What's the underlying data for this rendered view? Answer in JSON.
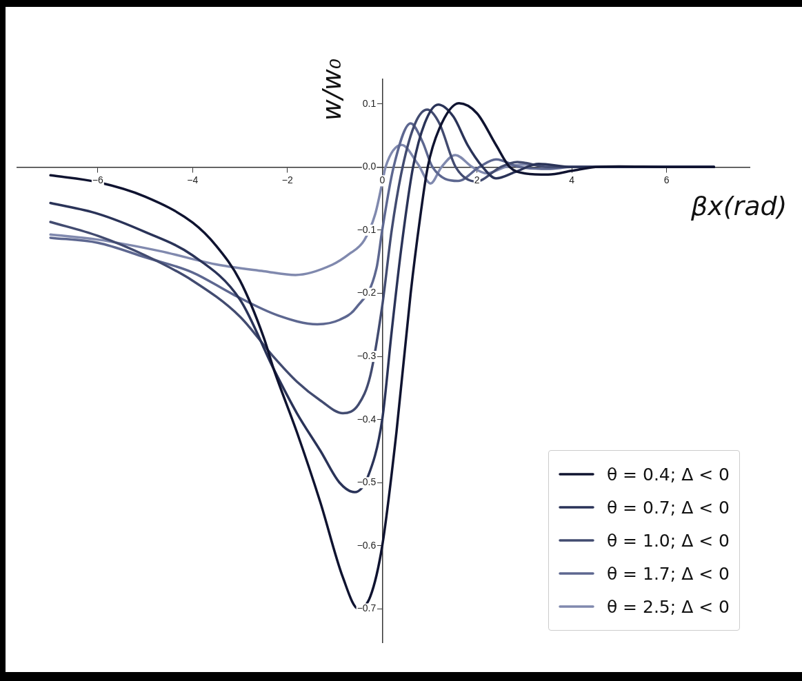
{
  "chart_data": {
    "type": "line",
    "xlabel": "βx(rad)",
    "ylabel": "w/w₀",
    "xlim": [
      -7.7,
      7.75
    ],
    "ylim": [
      -0.753,
      0.139
    ],
    "xticks": [
      {
        "value": -6,
        "label": "−6"
      },
      {
        "value": -4,
        "label": "−4"
      },
      {
        "value": -2,
        "label": "−2"
      },
      0,
      2,
      4,
      6
    ],
    "yticks": [
      0.1,
      {
        "value": 0,
        "label": "0.0"
      },
      {
        "value": -0.1,
        "label": "−0.1"
      },
      {
        "value": -0.2,
        "label": "−0.2"
      },
      {
        "value": -0.3,
        "label": "−0.3"
      },
      {
        "value": -0.4,
        "label": "−0.4"
      },
      {
        "value": -0.5,
        "label": "−0.5"
      },
      {
        "value": -0.6,
        "label": "−0.6"
      },
      {
        "value": -0.7,
        "label": "−0.7"
      }
    ],
    "grid": false,
    "legend": "bottom right",
    "marker": "none",
    "line_style": "solid",
    "series": [
      {
        "name": "θ = 0.4; Δ < 0",
        "color": "#0f1330",
        "x": [
          -7,
          -6,
          -5,
          -4,
          -3.5,
          -3,
          -2.5,
          -2.29,
          -1.8,
          -1.31,
          -0.83,
          -0.5,
          -0.25,
          0,
          0.3,
          0.6,
          0.8,
          0.96,
          1.2,
          1.62,
          2,
          2.4,
          2.69,
          3,
          3.5,
          4,
          4.5,
          5,
          6,
          7
        ],
        "values": [
          -0.013,
          -0.024,
          -0.047,
          -0.088,
          -0.125,
          -0.18,
          -0.27,
          -0.32,
          -0.42,
          -0.53,
          -0.65,
          -0.7,
          -0.68,
          -0.6,
          -0.42,
          -0.2,
          -0.08,
          0,
          0.06,
          0.101,
          0.085,
          0.035,
          0,
          -0.01,
          -0.012,
          -0.006,
          0,
          0.001,
          0,
          0
        ]
      },
      {
        "name": "θ = 0.7; Δ < 0",
        "color": "#2a3358",
        "x": [
          -7,
          -6,
          -5,
          -4,
          -3,
          -2.29,
          -1.8,
          -1.3,
          -0.9,
          -0.58,
          -0.3,
          0,
          0.2,
          0.4,
          0.65,
          0.9,
          1.18,
          1.5,
          1.8,
          2.12,
          2.4,
          2.8,
          3.3,
          4,
          5,
          6,
          7
        ],
        "values": [
          -0.057,
          -0.074,
          -0.103,
          -0.14,
          -0.21,
          -0.32,
          -0.39,
          -0.45,
          -0.5,
          -0.515,
          -0.49,
          -0.4,
          -0.26,
          -0.13,
          0,
          0.07,
          0.099,
          0.08,
          0.035,
          0,
          -0.018,
          -0.008,
          0.005,
          0,
          0,
          0,
          0
        ]
      },
      {
        "name": "θ = 1.0; Δ < 0",
        "color": "#424b70",
        "x": [
          -7,
          -6,
          -5,
          -4,
          -3,
          -2.3,
          -1.8,
          -1.3,
          -0.83,
          -0.5,
          -0.25,
          0,
          0.2,
          0.43,
          0.7,
          0.95,
          1.2,
          1.55,
          1.98,
          2.5,
          2.85,
          3.5,
          4,
          5,
          6,
          7
        ],
        "values": [
          -0.087,
          -0.109,
          -0.14,
          -0.18,
          -0.237,
          -0.3,
          -0.34,
          -0.37,
          -0.39,
          -0.376,
          -0.33,
          -0.22,
          -0.1,
          0,
          0.07,
          0.091,
          0.07,
          0,
          -0.023,
          0,
          0.008,
          0,
          0,
          0,
          0,
          0
        ]
      },
      {
        "name": "θ = 1.7; Δ < 0",
        "color": "#5d6790",
        "x": [
          -7,
          -6,
          -5,
          -4,
          -3.14,
          -2.2,
          -1.37,
          -0.9,
          -0.54,
          -0.12,
          0,
          0.24,
          0.6,
          0.85,
          1.06,
          1.6,
          2.05,
          2.4,
          2.9,
          3.5,
          4,
          5,
          6,
          7
        ],
        "values": [
          -0.112,
          -0.12,
          -0.143,
          -0.167,
          -0.202,
          -0.235,
          -0.249,
          -0.242,
          -0.222,
          -0.16,
          -0.1,
          0,
          0.069,
          0.04,
          0,
          -0.022,
          0,
          0.012,
          0,
          -0.003,
          0,
          0,
          0,
          0
        ]
      },
      {
        "name": "θ = 2.5; Δ < 0",
        "color": "#8089ae",
        "x": [
          -7,
          -6,
          -4.7,
          -3.45,
          -2.5,
          -1.83,
          -1.06,
          -0.7,
          -0.38,
          -0.15,
          0,
          0.07,
          0.41,
          0.75,
          1.02,
          1.25,
          1.54,
          1.9,
          2.2,
          2.6,
          3,
          4,
          5,
          6,
          7
        ],
        "values": [
          -0.107,
          -0.115,
          -0.133,
          -0.155,
          -0.165,
          -0.171,
          -0.155,
          -0.138,
          -0.116,
          -0.075,
          -0.025,
          0,
          0.035,
          0.005,
          -0.026,
          0,
          0.019,
          0,
          -0.01,
          0,
          0.004,
          0,
          0,
          0,
          0
        ]
      }
    ]
  }
}
